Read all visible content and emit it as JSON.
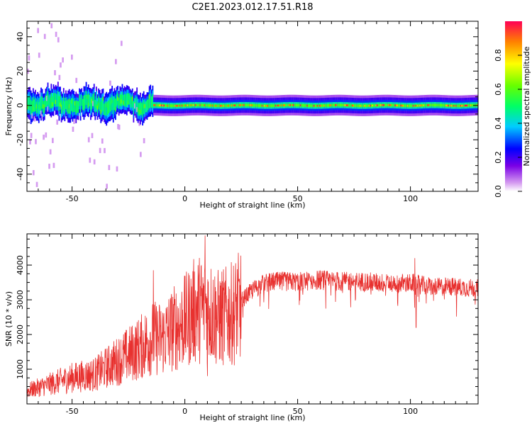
{
  "title": "C2E1.2023.012.17.51.R18",
  "chart_data": [
    {
      "type": "heatmap",
      "xlabel": "Height of straight line (km)",
      "ylabel": "Frequency (Hz)",
      "xlim": [
        -70,
        130
      ],
      "ylim": [
        -50,
        49
      ],
      "xticks": [
        -50,
        0,
        50,
        100
      ],
      "yticks": [
        -40,
        -20,
        0,
        20,
        40
      ],
      "colorbar": {
        "label": "Normalized spectral amplitude",
        "range": [
          0.0,
          1.0
        ],
        "ticks": [
          0.0,
          0.2,
          0.4,
          0.6,
          0.8
        ]
      },
      "description_bands": [
        {
          "x": [
            -70,
            -14
          ],
          "center_freq": 1,
          "half_width": 9,
          "note": "noisy broad blob"
        },
        {
          "x": [
            -14,
            130
          ],
          "center_freq": 0,
          "half_width": 3,
          "note": "narrow stable band, peak ~0 Hz"
        }
      ]
    },
    {
      "type": "line",
      "xlabel": "Height of straight line (km)",
      "ylabel": "SNR (10 * v/v)",
      "xlim": [
        -70,
        130
      ],
      "ylim": [
        0,
        4900
      ],
      "xticks": [
        -50,
        0,
        50,
        100
      ],
      "yticks": [
        1000,
        2000,
        3000,
        4000
      ],
      "series": [
        {
          "color": "#e8312f",
          "envelope_x": [
            -70,
            -60,
            -50,
            -40,
            -30,
            -20,
            -15,
            -10,
            -5,
            0,
            5,
            10,
            15,
            20,
            25,
            30,
            35,
            40,
            50,
            60,
            70,
            80,
            90,
            100,
            102,
            105,
            110,
            120,
            130
          ],
          "envelope_y": [
            400,
            600,
            800,
            900,
            1300,
            1700,
            2000,
            2000,
            2300,
            2500,
            2900,
            2900,
            2600,
            2700,
            3000,
            3300,
            3500,
            3550,
            3550,
            3600,
            3550,
            3550,
            3500,
            3500,
            3500,
            3450,
            3400,
            3400,
            3350
          ],
          "spikes": [
            {
              "x": -14,
              "y": 3850
            },
            {
              "x": 9,
              "y": 4850
            },
            {
              "x": 10,
              "y": 800
            },
            {
              "x": 102,
              "y": 4200
            },
            {
              "x": 102.5,
              "y": 2200
            }
          ]
        }
      ]
    }
  ]
}
